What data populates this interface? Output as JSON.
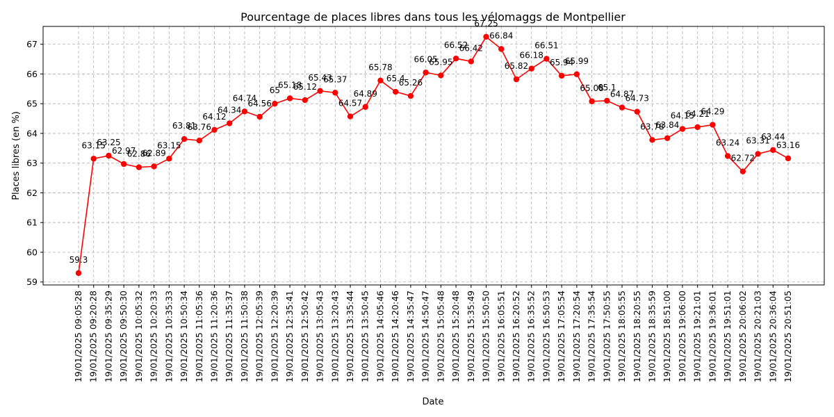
{
  "chart_data": {
    "type": "line",
    "title": "Pourcentage de places libres dans tous les vélomaggs de Montpellier",
    "xlabel": "Date",
    "ylabel": "Places libres (en %)",
    "ylim": [
      58.9,
      67.6
    ],
    "yticks": [
      59,
      60,
      61,
      62,
      63,
      64,
      65,
      66,
      67
    ],
    "grid": true,
    "x": [
      "19/01/2025 09:05:28",
      "19/01/2025 09:20:28",
      "19/01/2025 09:35:29",
      "19/01/2025 09:50:30",
      "19/01/2025 10:05:32",
      "19/01/2025 10:20:33",
      "19/01/2025 10:35:33",
      "19/01/2025 10:50:34",
      "19/01/2025 11:05:36",
      "19/01/2025 11:20:36",
      "19/01/2025 11:35:37",
      "19/01/2025 11:50:38",
      "19/01/2025 12:05:39",
      "19/01/2025 12:20:39",
      "19/01/2025 12:35:41",
      "19/01/2025 12:50:42",
      "19/01/2025 13:05:43",
      "19/01/2025 13:20:43",
      "19/01/2025 13:35:44",
      "19/01/2025 13:50:45",
      "19/01/2025 14:05:46",
      "19/01/2025 14:20:46",
      "19/01/2025 14:35:47",
      "19/01/2025 14:50:47",
      "19/01/2025 15:05:48",
      "19/01/2025 15:20:48",
      "19/01/2025 15:35:49",
      "19/01/2025 15:50:50",
      "19/01/2025 16:05:51",
      "19/01/2025 16:20:52",
      "19/01/2025 16:35:52",
      "19/01/2025 16:50:53",
      "19/01/2025 17:05:54",
      "19/01/2025 17:20:54",
      "19/01/2025 17:35:54",
      "19/01/2025 17:50:55",
      "19/01/2025 18:05:55",
      "19/01/2025 18:20:55",
      "19/01/2025 18:35:59",
      "19/01/2025 18:51:00",
      "19/01/2025 19:06:00",
      "19/01/2025 19:21:01",
      "19/01/2025 19:36:01",
      "19/01/2025 19:51:01",
      "19/01/2025 20:06:02",
      "19/01/2025 20:21:03",
      "19/01/2025 20:36:04",
      "19/01/2025 20:51:05"
    ],
    "series": [
      {
        "color": "#ff0000",
        "values": [
          59.3,
          63.15,
          63.25,
          62.97,
          62.86,
          62.89,
          63.15,
          63.81,
          63.76,
          64.12,
          64.34,
          64.74,
          64.56,
          65.0,
          65.18,
          65.12,
          65.43,
          65.37,
          64.57,
          64.89,
          65.78,
          65.4,
          65.26,
          66.05,
          65.95,
          66.52,
          66.42,
          67.25,
          66.84,
          65.82,
          66.18,
          66.51,
          65.94,
          65.99,
          65.08,
          65.1,
          64.87,
          64.73,
          63.78,
          63.84,
          64.15,
          64.21,
          64.29,
          63.24,
          62.72,
          63.31,
          63.44,
          63.16
        ]
      }
    ]
  }
}
